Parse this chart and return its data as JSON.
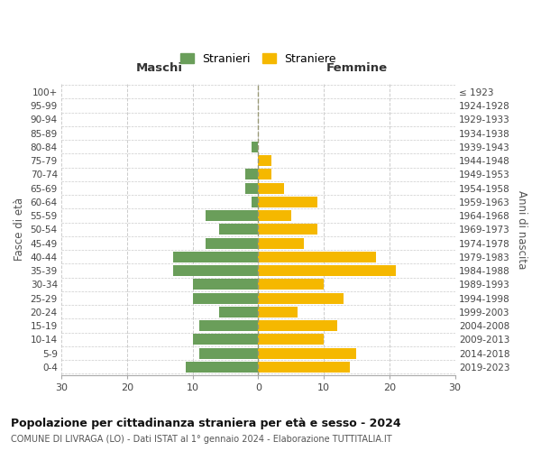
{
  "age_groups_bottom_to_top": [
    "0-4",
    "5-9",
    "10-14",
    "15-19",
    "20-24",
    "25-29",
    "30-34",
    "35-39",
    "40-44",
    "45-49",
    "50-54",
    "55-59",
    "60-64",
    "65-69",
    "70-74",
    "75-79",
    "80-84",
    "85-89",
    "90-94",
    "95-99",
    "100+"
  ],
  "birth_years_bottom_to_top": [
    "2019-2023",
    "2014-2018",
    "2009-2013",
    "2004-2008",
    "1999-2003",
    "1994-1998",
    "1989-1993",
    "1984-1988",
    "1979-1983",
    "1974-1978",
    "1969-1973",
    "1964-1968",
    "1959-1963",
    "1954-1958",
    "1949-1953",
    "1944-1948",
    "1939-1943",
    "1934-1938",
    "1929-1933",
    "1924-1928",
    "≤ 1923"
  ],
  "maschi_bottom_to_top": [
    11,
    9,
    10,
    9,
    6,
    10,
    10,
    13,
    13,
    8,
    6,
    8,
    1,
    2,
    2,
    0,
    1,
    0,
    0,
    0,
    0
  ],
  "femmine_bottom_to_top": [
    14,
    15,
    10,
    12,
    6,
    13,
    10,
    21,
    18,
    7,
    9,
    5,
    9,
    4,
    2,
    2,
    0,
    0,
    0,
    0,
    0
  ],
  "color_maschi": "#6a9e5a",
  "color_femmine": "#f5b800",
  "grid_color": "#cccccc",
  "title": "Popolazione per cittadinanza straniera per età e sesso - 2024",
  "subtitle": "COMUNE DI LIVRAGA (LO) - Dati ISTAT al 1° gennaio 2024 - Elaborazione TUTTITALIA.IT",
  "xlabel_left": "Maschi",
  "xlabel_right": "Femmine",
  "ylabel_left": "Fasce di età",
  "ylabel_right": "Anni di nascita",
  "legend_maschi": "Stranieri",
  "legend_femmine": "Straniere",
  "xlim": 30
}
